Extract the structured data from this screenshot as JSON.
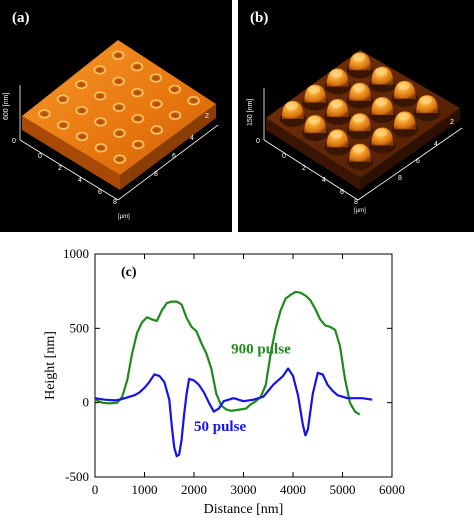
{
  "panels": {
    "a": {
      "label": "(a)",
      "z_axis": "600 [nm]",
      "z_ticks": [
        "0"
      ],
      "y_axis_ticks": [
        "2",
        "4",
        "6",
        "8"
      ],
      "x_axis_ticks": [
        "0",
        "2",
        "4",
        "6",
        "8"
      ],
      "x_unit": "[µm]",
      "colors": {
        "surface": "#e8760f",
        "highlight": "#ffd06a",
        "shadow": "#a84a05",
        "background": "#000000"
      }
    },
    "b": {
      "label": "(b)",
      "z_axis": "150 [nm]",
      "z_ticks": [
        "0"
      ],
      "y_axis_ticks": [
        "2",
        "4",
        "6",
        "8"
      ],
      "x_axis_ticks": [
        "0",
        "2",
        "4",
        "6",
        "8"
      ],
      "x_unit": "[µm]",
      "colors": {
        "base": "#6a2a05",
        "bump": "#f2901c",
        "highlight": "#ffd27a",
        "background": "#000000"
      }
    }
  },
  "chart_data": {
    "type": "line",
    "panel_label": "(c)",
    "xlabel": "Distance [nm]",
    "ylabel": "Height [nm]",
    "xlim": [
      0,
      6000
    ],
    "ylim": [
      -500,
      1000
    ],
    "x_ticks": [
      0,
      1000,
      2000,
      3000,
      4000,
      5000,
      6000
    ],
    "y_ticks": [
      -500,
      0,
      500,
      1000
    ],
    "grid": false,
    "series": [
      {
        "name": "900 pulse",
        "color": "#1e8a1e",
        "x": [
          0,
          150,
          300,
          450,
          550,
          650,
          750,
          850,
          950,
          1050,
          1150,
          1250,
          1350,
          1450,
          1550,
          1650,
          1750,
          1850,
          1950,
          2050,
          2150,
          2250,
          2350,
          2450,
          2550,
          2650,
          2750,
          2850,
          2950,
          3050,
          3150,
          3250,
          3350,
          3450,
          3550,
          3650,
          3750,
          3850,
          3950,
          4050,
          4150,
          4250,
          4350,
          4450,
          4550,
          4650,
          4750,
          4850,
          4950,
          5050,
          5150,
          5250,
          5350
        ],
        "y": [
          20,
          0,
          -5,
          0,
          40,
          150,
          330,
          470,
          540,
          575,
          560,
          550,
          620,
          670,
          680,
          680,
          660,
          570,
          510,
          480,
          400,
          330,
          230,
          60,
          -20,
          -45,
          -55,
          -50,
          -45,
          -40,
          -10,
          10,
          40,
          120,
          330,
          500,
          620,
          700,
          725,
          745,
          740,
          720,
          690,
          630,
          560,
          520,
          510,
          490,
          380,
          160,
          0,
          -60,
          -80
        ]
      },
      {
        "name": "50 pulse",
        "color": "#1414e6",
        "x": [
          0,
          200,
          400,
          500,
          600,
          700,
          800,
          900,
          1000,
          1100,
          1200,
          1300,
          1400,
          1500,
          1550,
          1600,
          1650,
          1700,
          1750,
          1800,
          1850,
          1900,
          2000,
          2100,
          2200,
          2300,
          2400,
          2500,
          2600,
          2800,
          3000,
          3200,
          3400,
          3500,
          3600,
          3700,
          3800,
          3900,
          4000,
          4100,
          4200,
          4250,
          4300,
          4400,
          4500,
          4600,
          4700,
          4800,
          4900,
          5000,
          5100,
          5200,
          5400,
          5600
        ],
        "y": [
          30,
          20,
          15,
          20,
          30,
          40,
          50,
          70,
          100,
          140,
          190,
          180,
          140,
          20,
          -150,
          -300,
          -360,
          -350,
          -250,
          -80,
          60,
          160,
          150,
          120,
          70,
          0,
          -60,
          -40,
          10,
          30,
          10,
          20,
          40,
          80,
          120,
          150,
          180,
          230,
          180,
          50,
          -150,
          -220,
          -180,
          60,
          200,
          190,
          120,
          80,
          50,
          40,
          30,
          30,
          30,
          20
        ]
      }
    ]
  }
}
